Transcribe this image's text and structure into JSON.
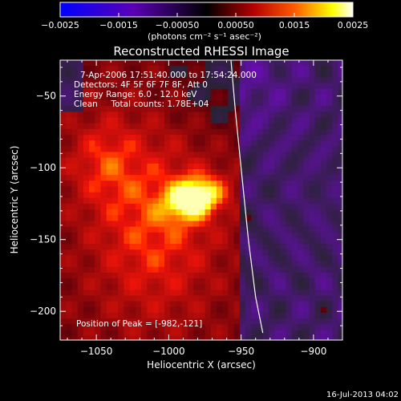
{
  "chart_data": {
    "type": "heatmap",
    "title": "Reconstructed RHESSI Image",
    "xlabel": "Heliocentric X (arcsec)",
    "ylabel": "Heliocentric Y (arcsec)",
    "xlim": [
      -1075,
      -880
    ],
    "ylim": [
      -220,
      -25
    ],
    "x_ticks": [
      -1050,
      -1000,
      -950,
      -900
    ],
    "x_tick_labels": [
      "−1050",
      "−1000",
      "−950",
      "−900"
    ],
    "y_ticks": [
      -200,
      -150,
      -100,
      -50
    ],
    "y_tick_labels": [
      "−200",
      "−150",
      "−100",
      "−50"
    ],
    "colorbar": {
      "range": [
        -0.0025,
        0.0025
      ],
      "ticks": [
        -0.0025,
        -0.0015,
        -0.0005,
        0.0005,
        0.0015,
        0.0025
      ],
      "tick_labels": [
        "−0.0025",
        "−0.0015",
        "−0.00050",
        "0.00050",
        "0.0015",
        "0.0025"
      ],
      "label": "(photons cm⁻² s⁻¹ asec⁻²)",
      "colors": [
        "#0000ff",
        "#5a00b4",
        "#000000",
        "#b40000",
        "#ff5a00",
        "#ffff00",
        "#ffffff"
      ]
    },
    "info_lines": [
      "7-Apr-2006 17:51:40.000 to 17:54:24.000",
      "Detectors: 4F 5F 6F 7F 8F, Att 0",
      "Energy Range: 6.0 - 12.0 keV",
      "Clean     Total counts: 1.78E+04"
    ],
    "peak_label": "Position of Peak = [-982,-121]",
    "peak_position": [
      -982,
      -121
    ],
    "limb_curve": {
      "x": [
        -957,
        -954,
        -950,
        -945,
        -940,
        -935
      ],
      "y": [
        -25,
        -60,
        -100,
        -150,
        -190,
        -215
      ]
    }
  },
  "footer": {
    "timestamp": "16-Jul-2013 04:02"
  }
}
